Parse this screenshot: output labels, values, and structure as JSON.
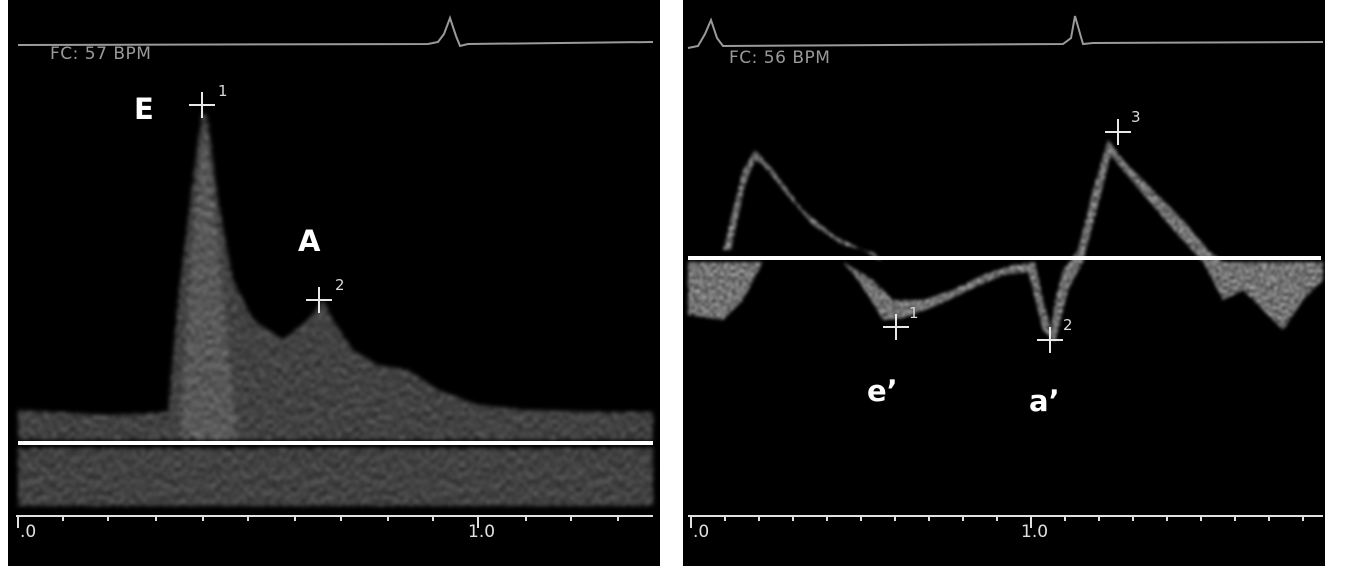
{
  "left_panel": {
    "heart_rate": "FC: 57 BPM",
    "peak_labels": [
      "E",
      "A"
    ],
    "marker_numbers": [
      "1",
      "2"
    ],
    "axis_ticks": [
      ".0",
      "1.0"
    ]
  },
  "right_panel": {
    "heart_rate": "FC: 56 BPM",
    "peak_labels": [
      "e’",
      "a’"
    ],
    "marker_numbers": [
      "1",
      "2",
      "3"
    ],
    "axis_ticks": [
      ".0",
      "1.0"
    ]
  },
  "colors": {
    "background": "#000000",
    "trace": "#ffffff",
    "ecg": "#9a9a9a",
    "text": "#ffffff"
  }
}
